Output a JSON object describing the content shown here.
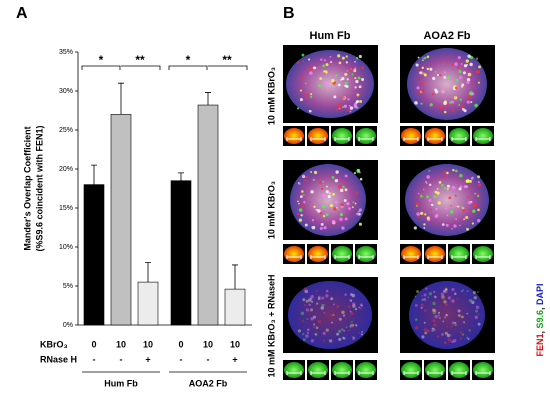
{
  "chart_data": {
    "type": "bar",
    "panel_label": "A",
    "ylabel": [
      "Mander's Overlap Coefficient",
      "(%S9.6 coincident with FEN1)"
    ],
    "categories": [
      "0",
      "10",
      "10",
      "0",
      "10",
      "10"
    ],
    "row_label": "KBrO₃",
    "rnase_label": "RNase H",
    "rnase": [
      "-",
      "-",
      "+",
      "-",
      "-",
      "+"
    ],
    "groups": [
      "Hum Fb",
      "AOA2 Fb"
    ],
    "values": [
      18,
      27,
      5.5,
      18.5,
      28.2,
      4.6
    ],
    "errors": [
      2.5,
      4,
      2.5,
      1,
      1.6,
      3.1
    ],
    "colors": [
      "#000000",
      "#c0c0c0",
      "#ececec",
      "#000000",
      "#c0c0c0",
      "#ececec"
    ],
    "significance": [
      "*",
      "**",
      "*",
      "**"
    ],
    "ylim": [
      0,
      35
    ],
    "yticks": [
      {
        "value": 0,
        "label": "0%"
      },
      {
        "value": 5,
        "label": "5%"
      },
      {
        "value": 10,
        "label": "10%"
      },
      {
        "value": 15,
        "label": "15%"
      },
      {
        "value": 20,
        "label": "20%"
      },
      {
        "value": 25,
        "label": "25%"
      },
      {
        "value": 30,
        "label": "30%"
      },
      {
        "value": 35,
        "label": "35%"
      }
    ]
  },
  "panel_b": {
    "panel_label": "B",
    "columns": [
      "Hum Fb",
      "AOA2 Fb"
    ],
    "rows": [
      "10 mM KBrO₃",
      "10 mM KBrO₃",
      "10 mM KBrO₃ + RNaseH"
    ],
    "legend": [
      "FEN1",
      "S9.6",
      "DAPI"
    ]
  }
}
